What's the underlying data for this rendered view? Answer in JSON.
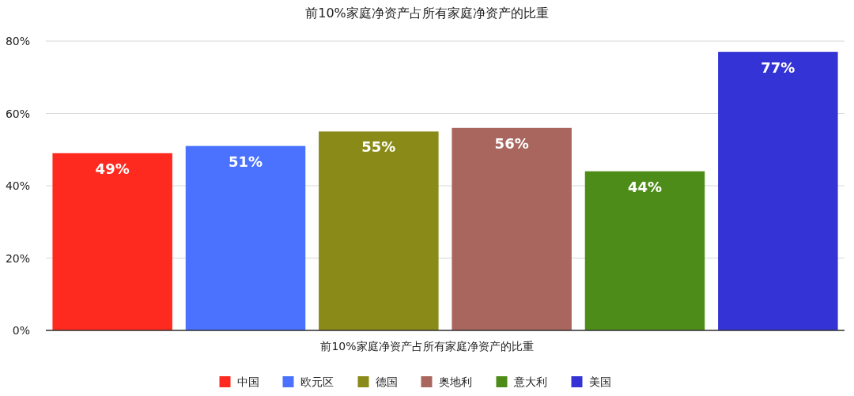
{
  "chart_data": {
    "type": "bar",
    "title": "前10%家庭净资产占所有家庭净资产的比重",
    "xlabel": "前10%家庭净资产占所有家庭净资产的比重",
    "categories": [
      null,
      null,
      null,
      null,
      null,
      null
    ],
    "series": [
      {
        "name": "中国",
        "color": "#ff2a1f",
        "values": [
          49,
          null,
          null,
          null,
          null,
          null
        ],
        "value_labels": [
          "49%",
          null,
          null,
          null,
          null,
          null
        ]
      },
      {
        "name": "欧元区",
        "color": "#4a72ff",
        "values": [
          null,
          51,
          null,
          null,
          null,
          null
        ],
        "value_labels": [
          null,
          "51%",
          null,
          null,
          null,
          null
        ]
      },
      {
        "name": "德国",
        "color": "#8a8a18",
        "values": [
          null,
          null,
          55,
          null,
          null,
          null
        ],
        "value_labels": [
          null,
          null,
          "55%",
          null,
          null,
          null
        ]
      },
      {
        "name": "奥地利",
        "color": "#a8665e",
        "values": [
          null,
          null,
          null,
          56,
          null,
          null
        ],
        "value_labels": [
          null,
          null,
          null,
          "56%",
          null,
          null
        ]
      },
      {
        "name": "意大利",
        "color": "#4e8c1a",
        "values": [
          null,
          null,
          null,
          null,
          44,
          null
        ],
        "value_labels": [
          null,
          null,
          null,
          null,
          "44%",
          null
        ]
      },
      {
        "name": "美国",
        "color": "#3333d6",
        "values": [
          null,
          null,
          null,
          null,
          null,
          77
        ],
        "value_labels": [
          null,
          null,
          null,
          null,
          null,
          "77%"
        ]
      }
    ],
    "ylim": [
      0,
      80
    ],
    "yticks": [
      {
        "value": 0,
        "label": "0%"
      },
      {
        "value": 20,
        "label": "20%"
      },
      {
        "value": 40,
        "label": "40%"
      },
      {
        "value": 60,
        "label": "60%"
      },
      {
        "value": 80,
        "label": "80%"
      }
    ],
    "grid": "y",
    "legend": "bottom"
  }
}
